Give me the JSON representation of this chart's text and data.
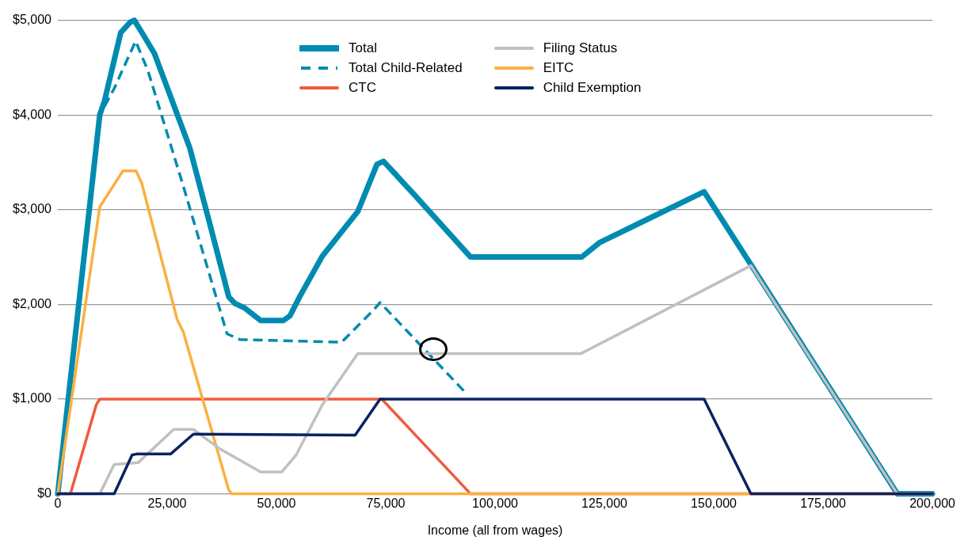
{
  "chart_data": {
    "type": "line",
    "xlabel": "Income (all from wages)",
    "xlim": [
      0,
      200000
    ],
    "xticks": [
      {
        "value": 0,
        "label": "0"
      },
      {
        "value": 25000,
        "label": "25,000"
      },
      {
        "value": 50000,
        "label": "50,000"
      },
      {
        "value": 75000,
        "label": "75,000"
      },
      {
        "value": 100000,
        "label": "100,000"
      },
      {
        "value": 125000,
        "label": "125,000"
      },
      {
        "value": 150000,
        "label": "150,000"
      },
      {
        "value": 175000,
        "label": "175,000"
      },
      {
        "value": 200000,
        "label": "200,000"
      }
    ],
    "ylim": [
      0,
      5000
    ],
    "yticks": [
      {
        "value": 0,
        "label": "$0"
      },
      {
        "value": 1000,
        "label": "$1,000"
      },
      {
        "value": 2000,
        "label": "$2,000"
      },
      {
        "value": 3000,
        "label": "$3,000"
      },
      {
        "value": 4000,
        "label": "$4,000"
      },
      {
        "value": 5000,
        "label": "$5,000"
      }
    ],
    "grid": "y",
    "legend": "top",
    "marker": "none",
    "series": [
      {
        "name": "Total",
        "color": "#008bb0",
        "line_style": "solid",
        "x": [
          0,
          9600,
          10700,
          14400,
          16600,
          17500,
          19500,
          22100,
          30200,
          34600,
          39100,
          40500,
          42800,
          46400,
          51600,
          53100,
          55300,
          60500,
          68600,
          73000,
          74500,
          75900,
          81500,
          94400,
          119800,
          123800,
          134900,
          147800,
          158500,
          192000,
          200000
        ],
        "values": [
          0,
          4000,
          4150,
          4870,
          4980,
          5000,
          4850,
          4650,
          3650,
          2880,
          2080,
          2010,
          1960,
          1830,
          1830,
          1880,
          2080,
          2510,
          2980,
          3480,
          3510,
          3440,
          3160,
          2500,
          2500,
          2650,
          2900,
          3190,
          2420,
          0,
          0
        ]
      },
      {
        "name": "Total Child-Related",
        "color": "#008bb0",
        "line_style": "dashed",
        "x": [
          0,
          9600,
          12900,
          17800,
          20600,
          28700,
          38700,
          41600,
          64900,
          72200,
          73700,
          93000
        ],
        "values": [
          0,
          4000,
          4280,
          4780,
          4470,
          3250,
          1690,
          1630,
          1600,
          1940,
          2020,
          1080
        ]
      },
      {
        "name": "CTC",
        "color": "#f05a40",
        "line_style": "solid",
        "x": [
          0,
          2900,
          8800,
          9600,
          74100,
          94400,
          200000
        ],
        "values": [
          0,
          0,
          940,
          1000,
          1000,
          0,
          0
        ]
      },
      {
        "name": "Filing Status",
        "color": "#c0c0c0",
        "line_style": "solid",
        "x": [
          0,
          9600,
          12900,
          18400,
          26500,
          31000,
          36900,
          46400,
          51200,
          54500,
          60500,
          68600,
          119600,
          158500,
          192000,
          200000
        ],
        "values": [
          0,
          0,
          310,
          330,
          680,
          680,
          480,
          230,
          230,
          410,
          940,
          1480,
          1480,
          2410,
          0,
          0
        ]
      },
      {
        "name": "EITC",
        "color": "#fbb040",
        "line_style": "solid",
        "x": [
          0,
          9600,
          14900,
          17900,
          19200,
          27300,
          28700,
          39100,
          39800,
          200000
        ],
        "values": [
          0,
          3030,
          3410,
          3410,
          3280,
          1840,
          1710,
          40,
          0,
          0
        ]
      },
      {
        "name": "Child Exemption",
        "color": "#0b2262",
        "line_style": "solid",
        "x": [
          0,
          12900,
          17000,
          18000,
          25800,
          31000,
          68000,
          73700,
          147800,
          158500,
          200000
        ],
        "values": [
          0,
          0,
          410,
          420,
          420,
          630,
          620,
          1000,
          1000,
          0,
          0
        ]
      }
    ]
  }
}
